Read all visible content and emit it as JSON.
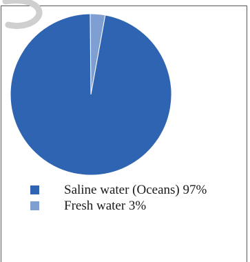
{
  "chart_data": {
    "type": "pie",
    "title": "",
    "slices": [
      {
        "label": "Saline water (Oceans) 97%",
        "value": 97,
        "color": "#2e64b2"
      },
      {
        "label": "Fresh water 3%",
        "value": 3,
        "color": "#7f9fd2"
      }
    ],
    "legend_placement": "bottom-left",
    "grid": false
  },
  "colors": {
    "frame_border": "#555555",
    "slice_edge": "#ffffff",
    "watermark": "#cfcfcf"
  }
}
